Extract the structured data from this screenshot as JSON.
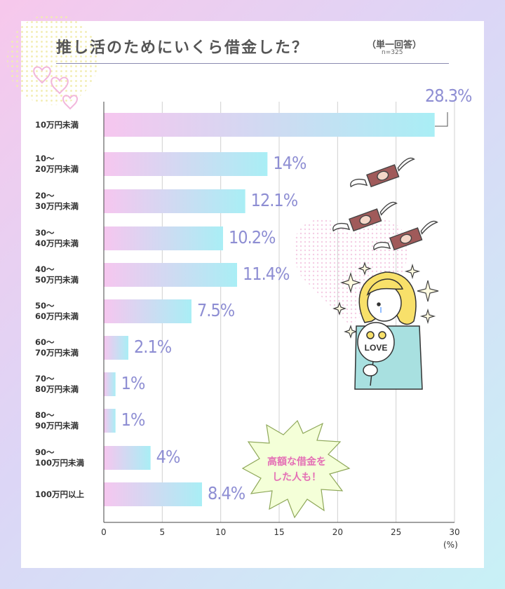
{
  "title": "推し活のためにいくら借金した？",
  "subtitle": "（単一回答）",
  "note": "n=325",
  "unit_label": "(%)",
  "callout": {
    "line1": "高額な借金を",
    "line2": "した人も！"
  },
  "illustration": {
    "fan_text": "LOVE"
  },
  "colors": {
    "bar_start": "#f6c6ef",
    "bar_end": "#a9eef5",
    "value_text": "#8e8ed3",
    "accent_pink": "#e46fb5",
    "burst_fill": "#f4ffd8",
    "burst_stroke": "#8fa85a"
  },
  "chart_data": {
    "type": "bar",
    "orientation": "horizontal",
    "categories": [
      [
        "10万円未満"
      ],
      [
        "10～",
        "20万円未満"
      ],
      [
        "20～",
        "30万円未満"
      ],
      [
        "30～",
        "40万円未満"
      ],
      [
        "40～",
        "50万円未満"
      ],
      [
        "50～",
        "60万円未満"
      ],
      [
        "60～",
        "70万円未満"
      ],
      [
        "70～",
        "80万円未満"
      ],
      [
        "80～",
        "90万円未満"
      ],
      [
        "90～",
        "100万円未満"
      ],
      [
        "100万円以上"
      ]
    ],
    "values": [
      28.3,
      14,
      12.1,
      10.2,
      11.4,
      7.5,
      2.1,
      1,
      1,
      4,
      8.4
    ],
    "value_labels": [
      "28.3%",
      "14%",
      "12.1%",
      "10.2%",
      "11.4%",
      "7.5%",
      "2.1%",
      "1%",
      "1%",
      "4%",
      "8.4%"
    ],
    "xlim": [
      0,
      30
    ],
    "xticks": [
      "0",
      "5",
      "10",
      "15",
      "20",
      "25",
      "30"
    ],
    "grid": true
  }
}
